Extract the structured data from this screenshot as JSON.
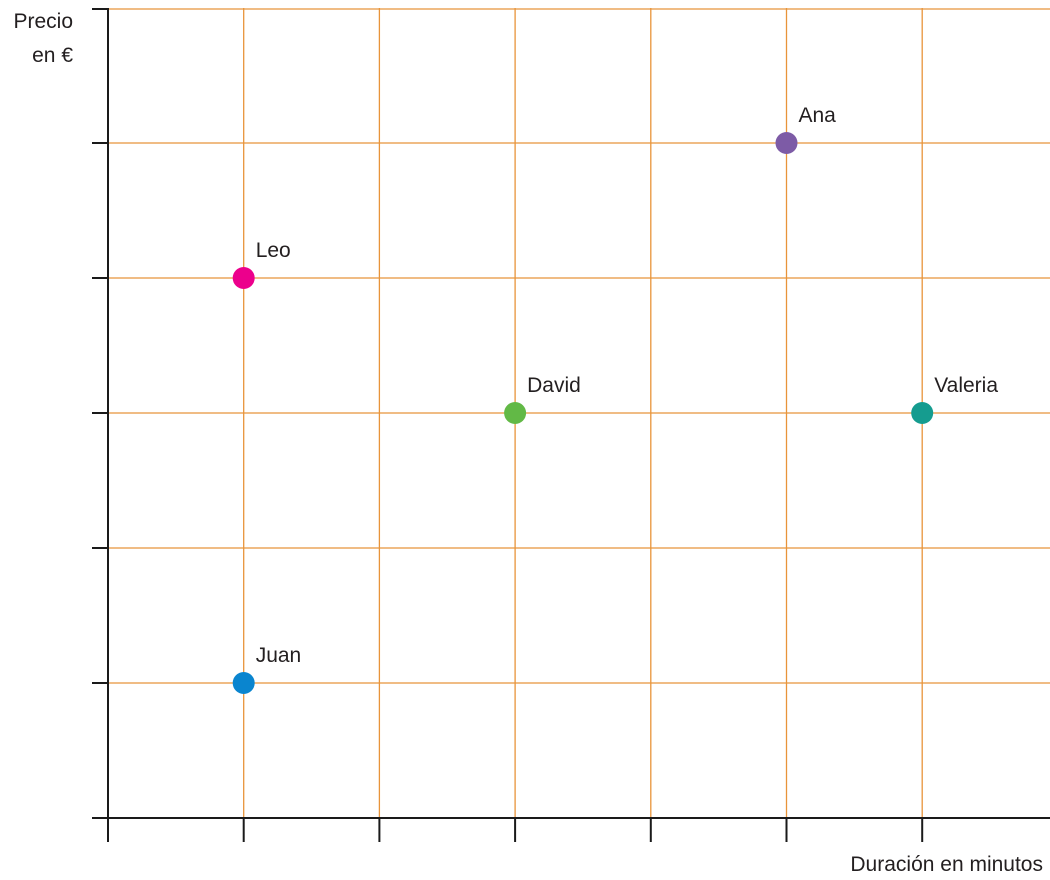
{
  "chart_data": {
    "type": "scatter",
    "ylabel_lines": [
      "Precio",
      "en €"
    ],
    "xlabel": "Duración en minutos",
    "xlim": [
      0,
      7
    ],
    "ylim": [
      0,
      6
    ],
    "x_ticks": [
      1,
      2,
      3,
      4,
      5,
      6
    ],
    "y_ticks": [
      1,
      2,
      3,
      4,
      5
    ],
    "grid": true,
    "points": [
      {
        "label": "Ana",
        "x": 5,
        "y": 5,
        "color": "#7d5ba6"
      },
      {
        "label": "Leo",
        "x": 1,
        "y": 4,
        "color": "#ec008c"
      },
      {
        "label": "David",
        "x": 3,
        "y": 3,
        "color": "#62b946"
      },
      {
        "label": "Valeria",
        "x": 6,
        "y": 3,
        "color": "#159c8f"
      },
      {
        "label": "Juan",
        "x": 1,
        "y": 1,
        "color": "#0a85cf"
      }
    ],
    "colors": {
      "grid": "#e8943a",
      "axis": "#1a1a1a"
    }
  }
}
